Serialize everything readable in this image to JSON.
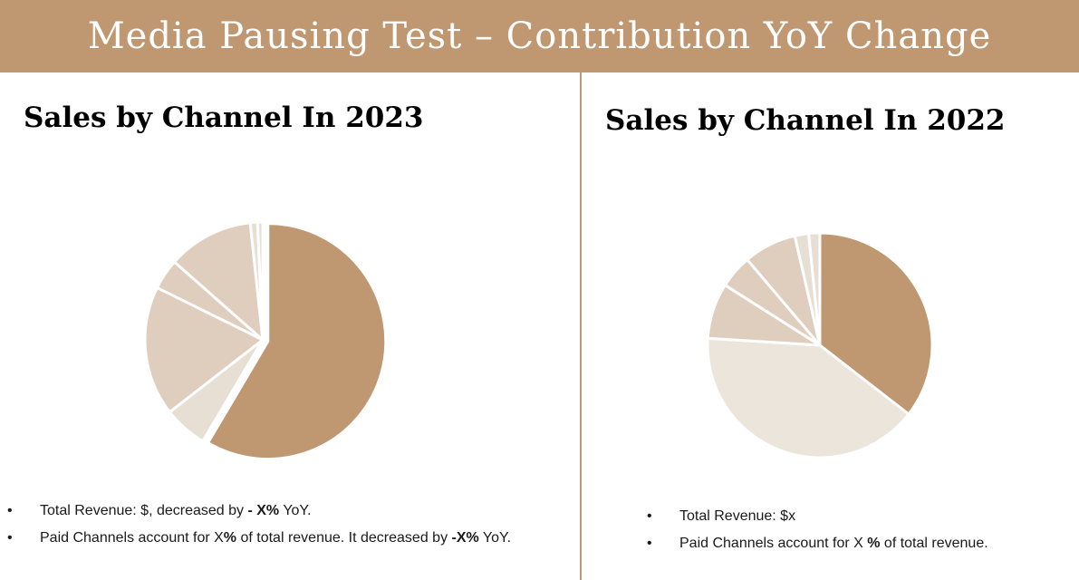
{
  "header": {
    "title": "Media Pausing Test – Contribution YoY Change"
  },
  "left_panel": {
    "title": "Sales by Channel In 2023",
    "notes": [
      {
        "bullet": "•",
        "prefix": "Total Revenue: $, decreased by ",
        "bold": "- X%",
        "suffix": " YoY.",
        "prefix2": "",
        "bold2": "",
        "suffix2": ""
      },
      {
        "bullet": "•",
        "prefix": "Paid Channels account for X",
        "bold": "%",
        "suffix": " of total revenue. It decreased by ",
        "prefix2": "",
        "bold2": "-X%",
        "suffix2": " YoY."
      }
    ]
  },
  "right_panel": {
    "title": "Sales by Channel In 2022",
    "notes": [
      {
        "bullet": "•",
        "prefix": "Total Revenue: $x",
        "bold": "",
        "suffix": ""
      },
      {
        "bullet": "•",
        "prefix": "Paid Channels account for X ",
        "bold": "%",
        "suffix": " of total revenue."
      }
    ]
  },
  "colors": {
    "banner": "#bf9871",
    "divider": "#bf9871",
    "slice_dark": "#bf9871",
    "slice_mid": "#dfcdbd",
    "slice_light": "#e8dfd4",
    "slice_pale": "#ebe5dc"
  },
  "chart_data": [
    {
      "type": "pie",
      "title": "Sales by Channel In 2023",
      "series": [
        {
          "values": [
            58.5,
            6,
            17.8,
            4.2,
            11.8,
            1,
            0.7
          ],
          "colors": [
            "#bf9871",
            "#e8dfd4",
            "#dfcdbd",
            "#dfcdbd",
            "#dfcdbd",
            "#e8dfd4",
            "#e8dfd4"
          ],
          "exploded": [
            1,
            0,
            0,
            0,
            0,
            0,
            0
          ]
        }
      ]
    },
    {
      "type": "pie",
      "title": "Sales by Channel In 2022",
      "series": [
        {
          "values": [
            35.5,
            40.5,
            8,
            4.8,
            7.6,
            2,
            1.6
          ],
          "colors": [
            "#bf9871",
            "#ebe5dc",
            "#dfcdbd",
            "#dfcdbd",
            "#dfcdbd",
            "#e8dfd4",
            "#e8dfd4"
          ],
          "exploded": [
            0,
            0,
            0,
            0,
            0,
            0,
            0
          ]
        }
      ]
    }
  ]
}
